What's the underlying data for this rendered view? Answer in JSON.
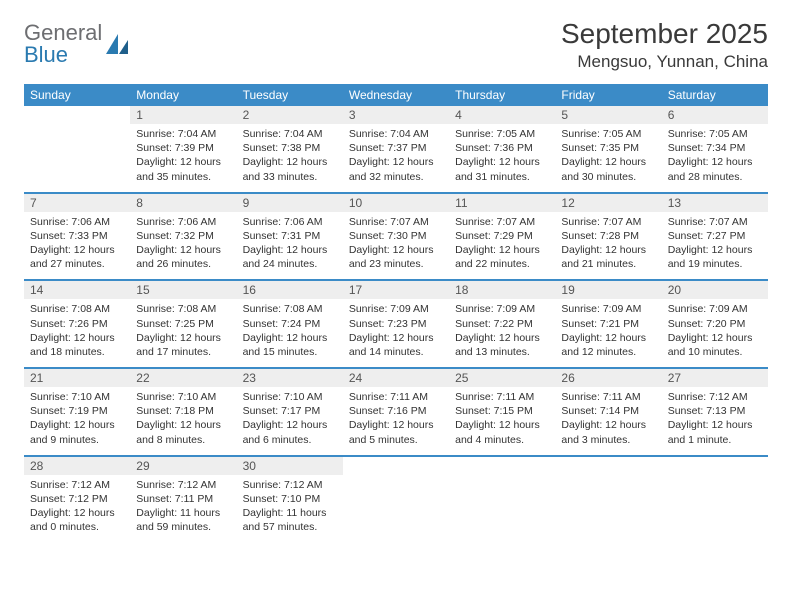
{
  "logo": {
    "word1": "General",
    "word2": "Blue"
  },
  "title": "September 2025",
  "location": "Mengsuo, Yunnan, China",
  "colors": {
    "header_bg": "#3b8bc7",
    "header_text": "#ffffff",
    "row_divider": "#3b8bc7",
    "daynum_bg": "#eeeeee",
    "logo_gray": "#6d6e71",
    "logo_blue": "#2a7ab0"
  },
  "day_names": [
    "Sunday",
    "Monday",
    "Tuesday",
    "Wednesday",
    "Thursday",
    "Friday",
    "Saturday"
  ],
  "weeks": [
    [
      {
        "n": "",
        "info": ""
      },
      {
        "n": "1",
        "info": "Sunrise: 7:04 AM\nSunset: 7:39 PM\nDaylight: 12 hours and 35 minutes."
      },
      {
        "n": "2",
        "info": "Sunrise: 7:04 AM\nSunset: 7:38 PM\nDaylight: 12 hours and 33 minutes."
      },
      {
        "n": "3",
        "info": "Sunrise: 7:04 AM\nSunset: 7:37 PM\nDaylight: 12 hours and 32 minutes."
      },
      {
        "n": "4",
        "info": "Sunrise: 7:05 AM\nSunset: 7:36 PM\nDaylight: 12 hours and 31 minutes."
      },
      {
        "n": "5",
        "info": "Sunrise: 7:05 AM\nSunset: 7:35 PM\nDaylight: 12 hours and 30 minutes."
      },
      {
        "n": "6",
        "info": "Sunrise: 7:05 AM\nSunset: 7:34 PM\nDaylight: 12 hours and 28 minutes."
      }
    ],
    [
      {
        "n": "7",
        "info": "Sunrise: 7:06 AM\nSunset: 7:33 PM\nDaylight: 12 hours and 27 minutes."
      },
      {
        "n": "8",
        "info": "Sunrise: 7:06 AM\nSunset: 7:32 PM\nDaylight: 12 hours and 26 minutes."
      },
      {
        "n": "9",
        "info": "Sunrise: 7:06 AM\nSunset: 7:31 PM\nDaylight: 12 hours and 24 minutes."
      },
      {
        "n": "10",
        "info": "Sunrise: 7:07 AM\nSunset: 7:30 PM\nDaylight: 12 hours and 23 minutes."
      },
      {
        "n": "11",
        "info": "Sunrise: 7:07 AM\nSunset: 7:29 PM\nDaylight: 12 hours and 22 minutes."
      },
      {
        "n": "12",
        "info": "Sunrise: 7:07 AM\nSunset: 7:28 PM\nDaylight: 12 hours and 21 minutes."
      },
      {
        "n": "13",
        "info": "Sunrise: 7:07 AM\nSunset: 7:27 PM\nDaylight: 12 hours and 19 minutes."
      }
    ],
    [
      {
        "n": "14",
        "info": "Sunrise: 7:08 AM\nSunset: 7:26 PM\nDaylight: 12 hours and 18 minutes."
      },
      {
        "n": "15",
        "info": "Sunrise: 7:08 AM\nSunset: 7:25 PM\nDaylight: 12 hours and 17 minutes."
      },
      {
        "n": "16",
        "info": "Sunrise: 7:08 AM\nSunset: 7:24 PM\nDaylight: 12 hours and 15 minutes."
      },
      {
        "n": "17",
        "info": "Sunrise: 7:09 AM\nSunset: 7:23 PM\nDaylight: 12 hours and 14 minutes."
      },
      {
        "n": "18",
        "info": "Sunrise: 7:09 AM\nSunset: 7:22 PM\nDaylight: 12 hours and 13 minutes."
      },
      {
        "n": "19",
        "info": "Sunrise: 7:09 AM\nSunset: 7:21 PM\nDaylight: 12 hours and 12 minutes."
      },
      {
        "n": "20",
        "info": "Sunrise: 7:09 AM\nSunset: 7:20 PM\nDaylight: 12 hours and 10 minutes."
      }
    ],
    [
      {
        "n": "21",
        "info": "Sunrise: 7:10 AM\nSunset: 7:19 PM\nDaylight: 12 hours and 9 minutes."
      },
      {
        "n": "22",
        "info": "Sunrise: 7:10 AM\nSunset: 7:18 PM\nDaylight: 12 hours and 8 minutes."
      },
      {
        "n": "23",
        "info": "Sunrise: 7:10 AM\nSunset: 7:17 PM\nDaylight: 12 hours and 6 minutes."
      },
      {
        "n": "24",
        "info": "Sunrise: 7:11 AM\nSunset: 7:16 PM\nDaylight: 12 hours and 5 minutes."
      },
      {
        "n": "25",
        "info": "Sunrise: 7:11 AM\nSunset: 7:15 PM\nDaylight: 12 hours and 4 minutes."
      },
      {
        "n": "26",
        "info": "Sunrise: 7:11 AM\nSunset: 7:14 PM\nDaylight: 12 hours and 3 minutes."
      },
      {
        "n": "27",
        "info": "Sunrise: 7:12 AM\nSunset: 7:13 PM\nDaylight: 12 hours and 1 minute."
      }
    ],
    [
      {
        "n": "28",
        "info": "Sunrise: 7:12 AM\nSunset: 7:12 PM\nDaylight: 12 hours and 0 minutes."
      },
      {
        "n": "29",
        "info": "Sunrise: 7:12 AM\nSunset: 7:11 PM\nDaylight: 11 hours and 59 minutes."
      },
      {
        "n": "30",
        "info": "Sunrise: 7:12 AM\nSunset: 7:10 PM\nDaylight: 11 hours and 57 minutes."
      },
      {
        "n": "",
        "info": ""
      },
      {
        "n": "",
        "info": ""
      },
      {
        "n": "",
        "info": ""
      },
      {
        "n": "",
        "info": ""
      }
    ]
  ]
}
